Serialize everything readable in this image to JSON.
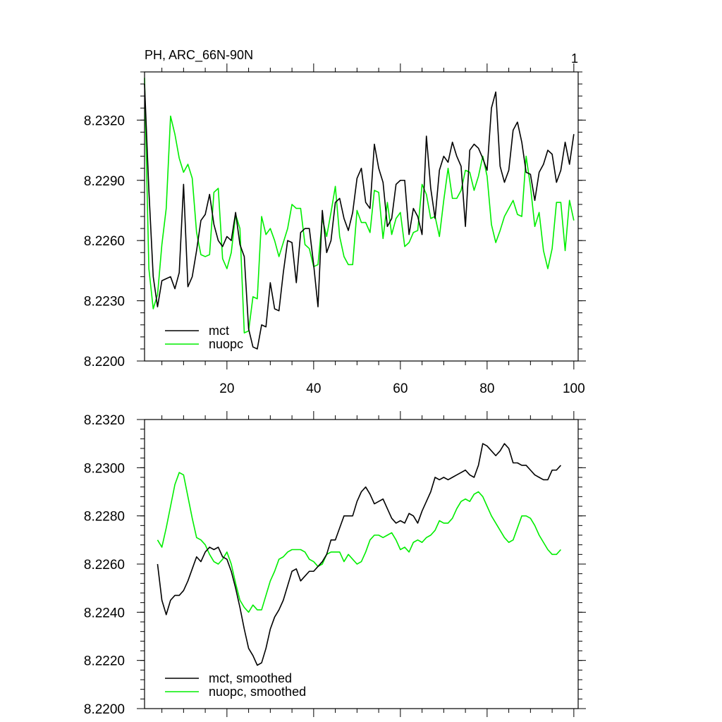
{
  "chart_data": [
    {
      "type": "line",
      "title_left": "PH, ARC_66N-90N",
      "title_right": "1",
      "xlim": [
        1,
        101
      ],
      "ylim": [
        8.22,
        8.2344
      ],
      "x_ticks": [
        20,
        40,
        60,
        80,
        100
      ],
      "x_ticklabels_shown": true,
      "y_ticks": [
        8.22,
        8.223,
        8.226,
        8.229,
        8.232
      ],
      "y_ticklabels": [
        "8.2200",
        "8.2230",
        "8.2260",
        "8.2290",
        "8.2320"
      ],
      "y_minor_step": 0.0006,
      "grid": false,
      "legend_position": "bottom-left",
      "series": [
        {
          "name": "mct",
          "color": "#000000",
          "x_start": 1,
          "values": [
            8.2338,
            8.2285,
            8.2242,
            8.2227,
            8.224,
            8.2241,
            8.2242,
            8.2236,
            8.2244,
            8.2288,
            8.2237,
            8.2242,
            8.2255,
            8.227,
            8.2273,
            8.2283,
            8.2268,
            8.226,
            8.2257,
            8.2262,
            8.226,
            8.2274,
            8.2258,
            8.2252,
            8.2216,
            8.2207,
            8.2206,
            8.2218,
            8.2217,
            8.2239,
            8.2226,
            8.2225,
            8.2244,
            8.226,
            8.2259,
            8.2239,
            8.2264,
            8.2266,
            8.2266,
            8.2248,
            8.2227,
            8.2275,
            8.2254,
            8.226,
            8.2279,
            8.2281,
            8.2271,
            8.2265,
            8.2274,
            8.2291,
            8.2296,
            8.2279,
            8.2276,
            8.2308,
            8.2296,
            8.2289,
            8.2267,
            8.2271,
            8.2288,
            8.229,
            8.229,
            8.2263,
            8.2276,
            8.2272,
            8.2263,
            8.2312,
            8.2286,
            8.2271,
            8.2295,
            8.2302,
            8.2299,
            8.2309,
            8.2302,
            8.2297,
            8.2267,
            8.2305,
            8.2308,
            8.2306,
            8.2301,
            8.2295,
            8.2326,
            8.2334,
            8.2297,
            8.2289,
            8.2295,
            8.2315,
            8.2319,
            8.2309,
            8.2294,
            8.2293,
            8.228,
            8.2294,
            8.2298,
            8.2305,
            8.2303,
            8.2289,
            8.2295,
            8.2309,
            8.2298,
            8.2313
          ]
        },
        {
          "name": "nuopc",
          "color": "#00ee00",
          "x_start": 1,
          "values": [
            8.2341,
            8.2246,
            8.2226,
            8.2233,
            8.2258,
            8.2276,
            8.2322,
            8.2313,
            8.2301,
            8.2294,
            8.2298,
            8.2291,
            8.2264,
            8.2253,
            8.2252,
            8.2253,
            8.2284,
            8.2286,
            8.2251,
            8.2246,
            8.2254,
            8.2273,
            8.2266,
            8.2214,
            8.2215,
            8.2232,
            8.2231,
            8.2272,
            8.2263,
            8.2266,
            8.226,
            8.2252,
            8.2259,
            8.2266,
            8.2278,
            8.2276,
            8.2276,
            8.2258,
            8.2256,
            8.2247,
            8.2248,
            8.2271,
            8.2262,
            8.2274,
            8.2287,
            8.2262,
            8.2252,
            8.2248,
            8.2248,
            8.2275,
            8.2269,
            8.2269,
            8.2264,
            8.2285,
            8.2284,
            8.2261,
            8.2279,
            8.2263,
            8.2271,
            8.2274,
            8.2257,
            8.2259,
            8.2264,
            8.2265,
            8.2288,
            8.2283,
            8.2271,
            8.2272,
            8.2262,
            8.228,
            8.2296,
            8.2281,
            8.2281,
            8.2285,
            8.2295,
            8.2294,
            8.2285,
            8.2292,
            8.2302,
            8.2292,
            8.2268,
            8.2259,
            8.2265,
            8.2272,
            8.2276,
            8.228,
            8.2273,
            8.2272,
            8.2302,
            8.2287,
            8.2267,
            8.2274,
            8.2255,
            8.2246,
            8.2256,
            8.2279,
            8.2279,
            8.2255,
            8.228,
            8.227
          ]
        }
      ]
    },
    {
      "type": "line",
      "xlim": [
        1,
        101
      ],
      "ylim": [
        8.22,
        8.232
      ],
      "x_ticks": [
        20,
        40,
        60,
        80,
        100
      ],
      "x_ticklabels_shown": false,
      "y_ticks": [
        8.22,
        8.222,
        8.224,
        8.226,
        8.228,
        8.23,
        8.232
      ],
      "y_ticklabels": [
        "8.2200",
        "8.2220",
        "8.2240",
        "8.2260",
        "8.2280",
        "8.2300",
        "8.2320"
      ],
      "y_minor_step": 0.0004,
      "grid": false,
      "legend_position": "bottom-left",
      "series": [
        {
          "name": "mct, smoothed",
          "color": "#000000",
          "x_start": 4,
          "values": [
            8.226,
            8.2245,
            8.2239,
            8.2245,
            8.2247,
            8.2247,
            8.2249,
            8.2253,
            8.2258,
            8.2263,
            8.2261,
            8.2265,
            8.2267,
            8.2266,
            8.2267,
            8.2263,
            8.2262,
            8.2257,
            8.225,
            8.2242,
            8.2233,
            8.2225,
            8.2222,
            8.2218,
            8.2219,
            8.2225,
            8.2233,
            8.2238,
            8.2241,
            8.2245,
            8.2251,
            8.2257,
            8.2258,
            8.2253,
            8.2255,
            8.2257,
            8.2257,
            8.2259,
            8.2261,
            8.2264,
            8.227,
            8.227,
            8.2275,
            8.228,
            8.228,
            8.228,
            8.2286,
            8.229,
            8.2292,
            8.2289,
            8.2285,
            8.2286,
            8.2287,
            8.2283,
            8.2279,
            8.2277,
            8.2278,
            8.2277,
            8.2281,
            8.228,
            8.2277,
            8.2282,
            8.2286,
            8.229,
            8.2296,
            8.2295,
            8.2296,
            8.2295,
            8.2296,
            8.2297,
            8.2298,
            8.2299,
            8.2297,
            8.2296,
            8.2301,
            8.231,
            8.2309,
            8.2307,
            8.2305,
            8.2307,
            8.231,
            8.2308,
            8.2302,
            8.2302,
            8.2301,
            8.2301,
            8.2299,
            8.2297,
            8.2296,
            8.2295,
            8.2295,
            8.2299,
            8.2299,
            8.2301
          ]
        },
        {
          "name": "nuopc, smoothed",
          "color": "#00ee00",
          "x_start": 4,
          "values": [
            8.227,
            8.2267,
            8.2275,
            8.2284,
            8.2293,
            8.2298,
            8.2297,
            8.2288,
            8.2279,
            8.2271,
            8.227,
            8.2268,
            8.2264,
            8.2261,
            8.226,
            8.2262,
            8.2265,
            8.226,
            8.2252,
            8.2245,
            8.2242,
            8.224,
            8.2243,
            8.2241,
            8.2241,
            8.2247,
            8.2253,
            8.2257,
            8.2262,
            8.2263,
            8.2265,
            8.2266,
            8.2266,
            8.2266,
            8.2265,
            8.2262,
            8.2261,
            8.2259,
            8.226,
            8.2264,
            8.2265,
            8.2265,
            8.2265,
            8.2261,
            8.2264,
            8.2262,
            8.226,
            8.2261,
            8.2265,
            8.227,
            8.2272,
            8.2272,
            8.2271,
            8.2272,
            8.2273,
            8.227,
            8.2266,
            8.2267,
            8.2265,
            8.2269,
            8.227,
            8.2269,
            8.2271,
            8.2272,
            8.2274,
            8.2278,
            8.2277,
            8.2277,
            8.2279,
            8.2283,
            8.2286,
            8.2287,
            8.2286,
            8.2289,
            8.229,
            8.2288,
            8.2284,
            8.228,
            8.2277,
            8.2274,
            8.2271,
            8.2269,
            8.227,
            8.2275,
            8.228,
            8.228,
            8.2279,
            8.2276,
            8.2272,
            8.2269,
            8.2266,
            8.2264,
            8.2264,
            8.2266
          ]
        }
      ]
    }
  ]
}
